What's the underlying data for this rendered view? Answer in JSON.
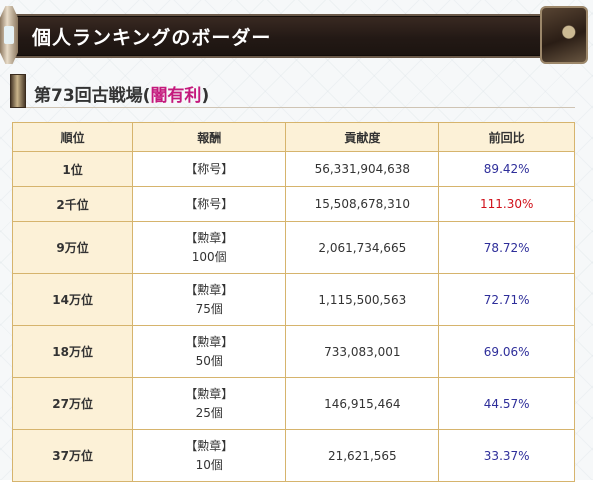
{
  "banner": {
    "title": "個人ランキングのボーダー"
  },
  "section": {
    "title_prefix": "第73回古戦場(",
    "highlight": "闇有利",
    "title_suffix": ")"
  },
  "table": {
    "headers": {
      "rank": "順位",
      "reward": "報酬",
      "contribution": "貢献度",
      "ratio": "前回比"
    },
    "rows": [
      {
        "rank": "1位",
        "reward_type": "【称号】",
        "reward_qty": "",
        "contribution": "56,331,904,638",
        "ratio": "89.42%",
        "ratio_color": "#2e2e9a"
      },
      {
        "rank": "2千位",
        "reward_type": "【称号】",
        "reward_qty": "",
        "contribution": "15,508,678,310",
        "ratio": "111.30%",
        "ratio_color": "#d0101a"
      },
      {
        "rank": "9万位",
        "reward_type": "【勲章】",
        "reward_qty": "100個",
        "contribution": "2,061,734,665",
        "ratio": "78.72%",
        "ratio_color": "#2e2e9a"
      },
      {
        "rank": "14万位",
        "reward_type": "【勲章】",
        "reward_qty": "75個",
        "contribution": "1,115,500,563",
        "ratio": "72.71%",
        "ratio_color": "#2e2e9a"
      },
      {
        "rank": "18万位",
        "reward_type": "【勲章】",
        "reward_qty": "50個",
        "contribution": "733,083,001",
        "ratio": "69.06%",
        "ratio_color": "#2e2e9a"
      },
      {
        "rank": "27万位",
        "reward_type": "【勲章】",
        "reward_qty": "25個",
        "contribution": "146,915,464",
        "ratio": "44.57%",
        "ratio_color": "#2e2e9a"
      },
      {
        "rank": "37万位",
        "reward_type": "【勲章】",
        "reward_qty": "10個",
        "contribution": "21,621,565",
        "ratio": "33.37%",
        "ratio_color": "#2e2e9a"
      }
    ]
  },
  "colors": {
    "banner_bg": "#231915",
    "header_cell_bg": "#fcf1d7",
    "border": "#d6b46d",
    "highlight": "#c4197c"
  }
}
